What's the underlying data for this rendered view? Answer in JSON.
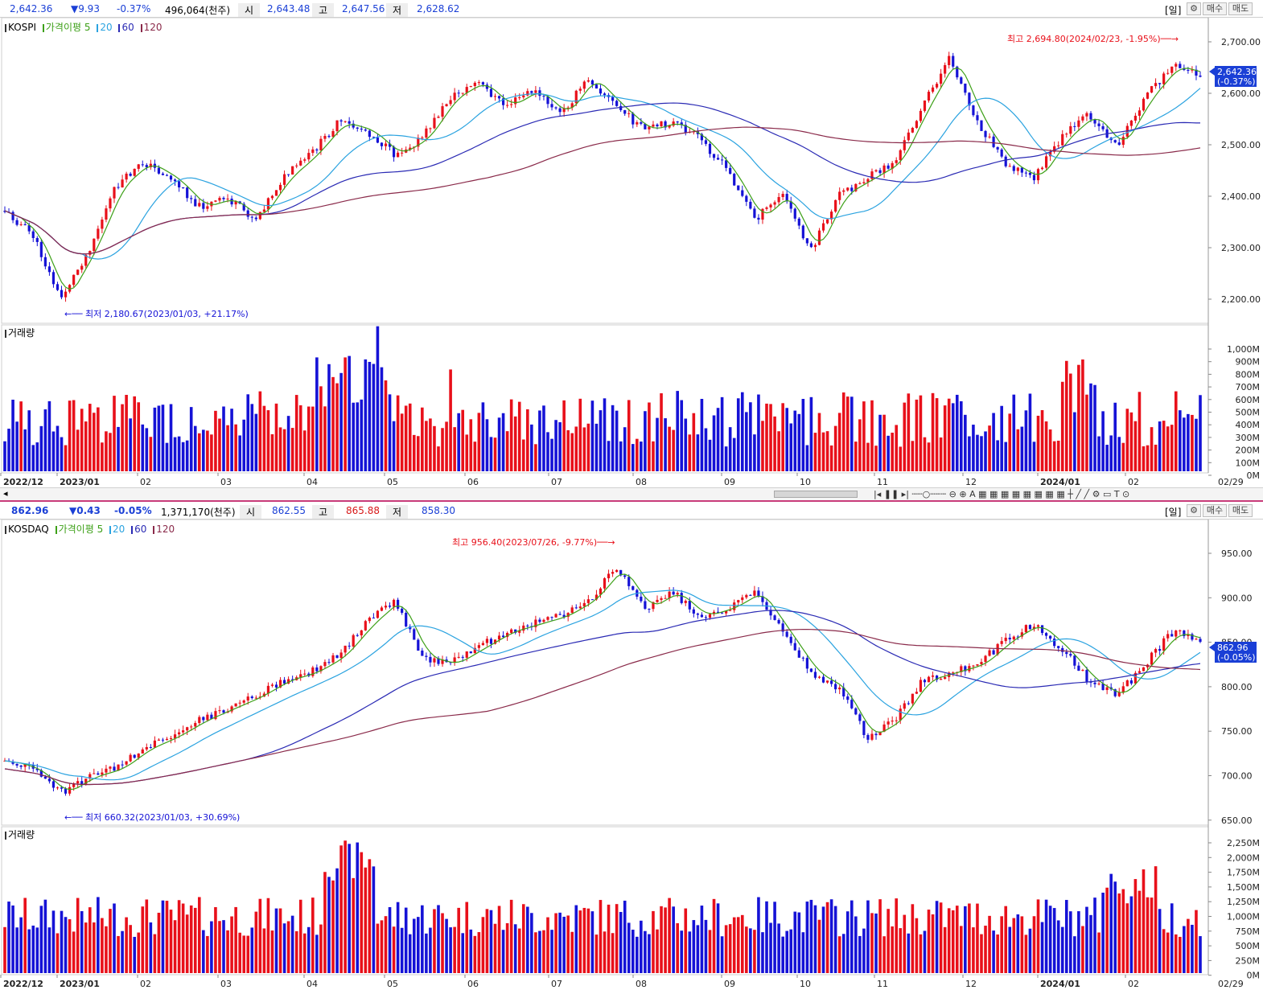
{
  "kospi": {
    "quote": {
      "price": "2,642.36",
      "change": "▼9.93",
      "change_pct": "-0.37%",
      "volume": "496,064(천주)",
      "open_label": "시",
      "open": "2,643.48",
      "high_label": "고",
      "high": "2,647.56",
      "low_label": "저",
      "low": "2,628.62"
    },
    "period": "[일]",
    "buy_label": "매수",
    "sell_label": "매도",
    "legend": {
      "name": "KOSPI",
      "ma_label": "가격이평",
      "ma5": "5",
      "ma20": "20",
      "ma60": "60",
      "ma120": "120"
    },
    "volume_label": "거래량",
    "annot_high": "최고 2,694.80(2024/02/23, -1.95%)",
    "annot_low": "최저 2,180.67(2023/01/03, +21.17%)",
    "last_price_tag": "2,642.36",
    "last_pct_tag": "(-0.37%)",
    "price_axis": [
      "2,700.00",
      "2,600.00",
      "2,500.00",
      "2,400.00",
      "2,300.00",
      "2,200.00"
    ],
    "volume_axis": [
      "1,000M",
      "900M",
      "800M",
      "700M",
      "600M",
      "500M",
      "400M",
      "300M",
      "200M",
      "100M",
      "0M"
    ],
    "date_axis": [
      "2022/12",
      "2023/01",
      "02",
      "03",
      "04",
      "05",
      "06",
      "07",
      "08",
      "09",
      "10",
      "11",
      "12",
      "2024/01",
      "02"
    ],
    "last_date": "02/29"
  },
  "kosdaq": {
    "quote": {
      "price": "862.96",
      "change": "▼0.43",
      "change_pct": "-0.05%",
      "volume": "1,371,170(천주)",
      "open_label": "시",
      "open": "862.55",
      "high_label": "고",
      "high": "865.88",
      "low_label": "저",
      "low": "858.30"
    },
    "period": "[일]",
    "buy_label": "매수",
    "sell_label": "매도",
    "legend": {
      "name": "KOSDAQ",
      "ma_label": "가격이평",
      "ma5": "5",
      "ma20": "20",
      "ma60": "60",
      "ma120": "120"
    },
    "volume_label": "거래량",
    "annot_high": "최고 956.40(2023/07/26, -9.77%)",
    "annot_low": "최저 660.32(2023/01/03, +30.69%)",
    "last_price_tag": "862.96",
    "last_pct_tag": "(-0.05%)",
    "price_axis": [
      "950.00",
      "900.00",
      "850.00",
      "800.00",
      "750.00",
      "700.00",
      "650.00"
    ],
    "volume_axis": [
      "2,250M",
      "2,000M",
      "1,750M",
      "1,500M",
      "1,250M",
      "1,000M",
      "750M",
      "500M",
      "250M",
      "0M"
    ],
    "date_axis": [
      "2022/12",
      "2023/01",
      "02",
      "03",
      "04",
      "05",
      "06",
      "07",
      "08",
      "09",
      "10",
      "11",
      "12",
      "2024/01",
      "02"
    ],
    "last_date": "02/29"
  },
  "colors": {
    "up": "#e8101a",
    "down": "#1512d6",
    "ma5": "#3da018",
    "ma20": "#2ba3e0",
    "ma60": "#2a2ab4",
    "ma120": "#8a2a4a"
  },
  "toolbar_icons": [
    "gear-icon",
    "magnify-minus-icon",
    "magnify-plus-icon",
    "text-icon",
    "line-icon",
    "crosshair-icon"
  ]
}
